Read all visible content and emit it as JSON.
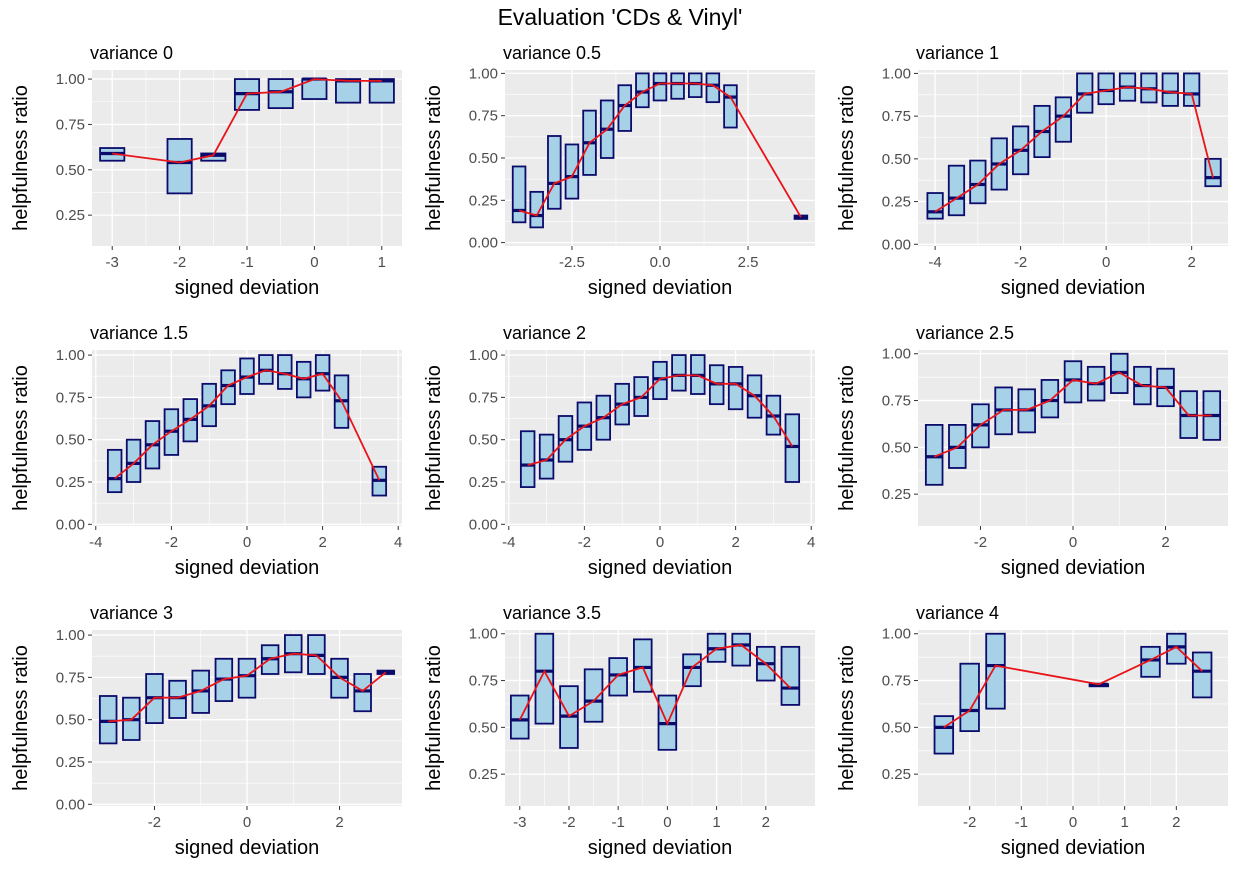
{
  "title": "Evaluation 'CDs & Vinyl'",
  "colors": {
    "panel_bg": "#ebebeb",
    "grid": "#ffffff",
    "box_fill": "#a6d1e6",
    "box_stroke": "#0b0b6b",
    "line": "#e8141a",
    "tick_text": "#4d4d4d"
  },
  "chart_data": [
    {
      "type": "box",
      "title": "variance 0",
      "xlabel": "signed deviation",
      "ylabel": "helpfulness ratio",
      "xlim": [
        -3.3,
        1.3
      ],
      "ylim": [
        0.08,
        1.05
      ],
      "xticks": [
        -3,
        -2,
        -1,
        0,
        1
      ],
      "xtick_labels": [
        "-3",
        "-2",
        "-1",
        "0",
        "1"
      ],
      "yticks": [
        0.25,
        0.5,
        0.75,
        1.0
      ],
      "ytick_labels": [
        "0.25",
        "0.50",
        "0.75",
        "1.00"
      ],
      "points": [
        {
          "x": -3,
          "lo": 0.55,
          "hi": 0.62,
          "med": 0.59
        },
        {
          "x": -2,
          "lo": 0.37,
          "hi": 0.67,
          "med": 0.54
        },
        {
          "x": -1.5,
          "lo": 0.55,
          "hi": 0.59,
          "med": 0.58
        },
        {
          "x": -1,
          "lo": 0.83,
          "hi": 1.0,
          "med": 0.92
        },
        {
          "x": -0.5,
          "lo": 0.84,
          "hi": 1.0,
          "med": 0.93
        },
        {
          "x": 0,
          "lo": 0.89,
          "hi": 1.0,
          "med": 1.0
        },
        {
          "x": 0.5,
          "lo": 0.87,
          "hi": 1.0,
          "med": 0.99
        },
        {
          "x": 1,
          "lo": 0.87,
          "hi": 1.0,
          "med": 0.99
        }
      ]
    },
    {
      "type": "box",
      "title": "variance 0.5",
      "xlabel": "signed deviation",
      "ylabel": "helpfulness ratio",
      "xlim": [
        -4.4,
        4.4
      ],
      "ylim": [
        -0.02,
        1.02
      ],
      "xticks": [
        -2.5,
        0,
        2.5
      ],
      "xtick_labels": [
        "-2.5",
        "0.0",
        "2.5"
      ],
      "yticks": [
        0,
        0.25,
        0.5,
        0.75,
        1.0
      ],
      "ytick_labels": [
        "0.00",
        "0.25",
        "0.50",
        "0.75",
        "1.00"
      ],
      "points": [
        {
          "x": -4,
          "lo": 0.12,
          "hi": 0.45,
          "med": 0.19
        },
        {
          "x": -3.5,
          "lo": 0.09,
          "hi": 0.3,
          "med": 0.16
        },
        {
          "x": -3,
          "lo": 0.2,
          "hi": 0.63,
          "med": 0.35
        },
        {
          "x": -2.5,
          "lo": 0.26,
          "hi": 0.58,
          "med": 0.39
        },
        {
          "x": -2,
          "lo": 0.4,
          "hi": 0.78,
          "med": 0.59
        },
        {
          "x": -1.5,
          "lo": 0.5,
          "hi": 0.84,
          "med": 0.67
        },
        {
          "x": -1,
          "lo": 0.66,
          "hi": 0.93,
          "med": 0.81
        },
        {
          "x": -0.5,
          "lo": 0.8,
          "hi": 1.0,
          "med": 0.89
        },
        {
          "x": 0,
          "lo": 0.84,
          "hi": 1.0,
          "med": 0.94
        },
        {
          "x": 0.5,
          "lo": 0.85,
          "hi": 1.0,
          "med": 0.94
        },
        {
          "x": 1,
          "lo": 0.86,
          "hi": 1.0,
          "med": 0.94
        },
        {
          "x": 1.5,
          "lo": 0.83,
          "hi": 1.0,
          "med": 0.93
        },
        {
          "x": 2,
          "lo": 0.68,
          "hi": 0.93,
          "med": 0.86
        },
        {
          "x": 4,
          "lo": 0.14,
          "hi": 0.16,
          "med": 0.15
        }
      ]
    },
    {
      "type": "box",
      "title": "variance 1",
      "xlabel": "signed deviation",
      "ylabel": "helpfulness ratio",
      "xlim": [
        -4.4,
        2.85
      ],
      "ylim": [
        -0.01,
        1.02
      ],
      "xticks": [
        -4,
        -2,
        0,
        2
      ],
      "xtick_labels": [
        "-4",
        "-2",
        "0",
        "2"
      ],
      "yticks": [
        0,
        0.25,
        0.5,
        0.75,
        1.0
      ],
      "ytick_labels": [
        "0.00",
        "0.25",
        "0.50",
        "0.75",
        "1.00"
      ],
      "points": [
        {
          "x": -4,
          "lo": 0.15,
          "hi": 0.3,
          "med": 0.19
        },
        {
          "x": -3.5,
          "lo": 0.17,
          "hi": 0.46,
          "med": 0.27
        },
        {
          "x": -3,
          "lo": 0.24,
          "hi": 0.49,
          "med": 0.35
        },
        {
          "x": -2.5,
          "lo": 0.32,
          "hi": 0.62,
          "med": 0.47
        },
        {
          "x": -2,
          "lo": 0.41,
          "hi": 0.69,
          "med": 0.55
        },
        {
          "x": -1.5,
          "lo": 0.51,
          "hi": 0.81,
          "med": 0.66
        },
        {
          "x": -1,
          "lo": 0.6,
          "hi": 0.86,
          "med": 0.75
        },
        {
          "x": -0.5,
          "lo": 0.77,
          "hi": 1.0,
          "med": 0.88
        },
        {
          "x": 0,
          "lo": 0.82,
          "hi": 1.0,
          "med": 0.9
        },
        {
          "x": 0.5,
          "lo": 0.84,
          "hi": 1.0,
          "med": 0.92
        },
        {
          "x": 1,
          "lo": 0.83,
          "hi": 1.0,
          "med": 0.91
        },
        {
          "x": 1.5,
          "lo": 0.81,
          "hi": 1.0,
          "med": 0.89
        },
        {
          "x": 2,
          "lo": 0.81,
          "hi": 1.0,
          "med": 0.88
        },
        {
          "x": 2.5,
          "lo": 0.34,
          "hi": 0.5,
          "med": 0.39
        }
      ]
    },
    {
      "type": "box",
      "title": "variance 1.5",
      "xlabel": "signed deviation",
      "ylabel": "helpfulness ratio",
      "xlim": [
        -4.1,
        4.1
      ],
      "ylim": [
        -0.01,
        1.03
      ],
      "xticks": [
        -4,
        -2,
        0,
        2,
        4
      ],
      "xtick_labels": [
        "-4",
        "-2",
        "0",
        "2",
        "4"
      ],
      "yticks": [
        0,
        0.25,
        0.5,
        0.75,
        1.0
      ],
      "ytick_labels": [
        "0.00",
        "0.25",
        "0.50",
        "0.75",
        "1.00"
      ],
      "points": [
        {
          "x": -3.5,
          "lo": 0.19,
          "hi": 0.44,
          "med": 0.27
        },
        {
          "x": -3,
          "lo": 0.25,
          "hi": 0.5,
          "med": 0.36
        },
        {
          "x": -2.5,
          "lo": 0.33,
          "hi": 0.61,
          "med": 0.47
        },
        {
          "x": -2,
          "lo": 0.41,
          "hi": 0.68,
          "med": 0.55
        },
        {
          "x": -1.5,
          "lo": 0.49,
          "hi": 0.74,
          "med": 0.62
        },
        {
          "x": -1,
          "lo": 0.58,
          "hi": 0.83,
          "med": 0.7
        },
        {
          "x": -0.5,
          "lo": 0.71,
          "hi": 0.91,
          "med": 0.82
        },
        {
          "x": 0,
          "lo": 0.77,
          "hi": 0.98,
          "med": 0.87
        },
        {
          "x": 0.5,
          "lo": 0.83,
          "hi": 1.0,
          "med": 0.91
        },
        {
          "x": 1,
          "lo": 0.8,
          "hi": 1.0,
          "med": 0.89
        },
        {
          "x": 1.5,
          "lo": 0.75,
          "hi": 0.96,
          "med": 0.86
        },
        {
          "x": 2,
          "lo": 0.79,
          "hi": 1.0,
          "med": 0.89
        },
        {
          "x": 2.5,
          "lo": 0.57,
          "hi": 0.88,
          "med": 0.73
        },
        {
          "x": 3.5,
          "lo": 0.17,
          "hi": 0.34,
          "med": 0.26
        }
      ]
    },
    {
      "type": "box",
      "title": "variance 2",
      "xlabel": "signed deviation",
      "ylabel": "helpfulness ratio",
      "xlim": [
        -4.1,
        4.1
      ],
      "ylim": [
        -0.01,
        1.03
      ],
      "xticks": [
        -4,
        -2,
        0,
        2,
        4
      ],
      "xtick_labels": [
        "-4",
        "-2",
        "0",
        "2",
        "4"
      ],
      "yticks": [
        0,
        0.25,
        0.5,
        0.75,
        1.0
      ],
      "ytick_labels": [
        "0.00",
        "0.25",
        "0.50",
        "0.75",
        "1.00"
      ],
      "points": [
        {
          "x": -3.5,
          "lo": 0.22,
          "hi": 0.55,
          "med": 0.35
        },
        {
          "x": -3,
          "lo": 0.27,
          "hi": 0.53,
          "med": 0.38
        },
        {
          "x": -2.5,
          "lo": 0.37,
          "hi": 0.64,
          "med": 0.5
        },
        {
          "x": -2,
          "lo": 0.44,
          "hi": 0.72,
          "med": 0.58
        },
        {
          "x": -1.5,
          "lo": 0.5,
          "hi": 0.76,
          "med": 0.63
        },
        {
          "x": -1,
          "lo": 0.59,
          "hi": 0.83,
          "med": 0.71
        },
        {
          "x": -0.5,
          "lo": 0.64,
          "hi": 0.87,
          "med": 0.75
        },
        {
          "x": 0,
          "lo": 0.74,
          "hi": 0.96,
          "med": 0.86
        },
        {
          "x": 0.5,
          "lo": 0.79,
          "hi": 1.0,
          "med": 0.88
        },
        {
          "x": 1,
          "lo": 0.77,
          "hi": 1.0,
          "med": 0.88
        },
        {
          "x": 1.5,
          "lo": 0.71,
          "hi": 0.94,
          "med": 0.83
        },
        {
          "x": 2,
          "lo": 0.68,
          "hi": 0.93,
          "med": 0.83
        },
        {
          "x": 2.5,
          "lo": 0.63,
          "hi": 0.88,
          "med": 0.76
        },
        {
          "x": 3,
          "lo": 0.53,
          "hi": 0.76,
          "med": 0.64
        },
        {
          "x": 3.5,
          "lo": 0.25,
          "hi": 0.65,
          "med": 0.46
        }
      ]
    },
    {
      "type": "box",
      "title": "variance 2.5",
      "xlabel": "signed deviation",
      "ylabel": "helpfulness ratio",
      "xlim": [
        -3.35,
        3.35
      ],
      "ylim": [
        0.08,
        1.02
      ],
      "xticks": [
        -2,
        0,
        2
      ],
      "xtick_labels": [
        "-2",
        "0",
        "2"
      ],
      "yticks": [
        0.25,
        0.5,
        0.75,
        1.0
      ],
      "ytick_labels": [
        "0.25",
        "0.50",
        "0.75",
        "1.00"
      ],
      "points": [
        {
          "x": -3,
          "lo": 0.3,
          "hi": 0.62,
          "med": 0.45
        },
        {
          "x": -2.5,
          "lo": 0.39,
          "hi": 0.62,
          "med": 0.5
        },
        {
          "x": -2,
          "lo": 0.5,
          "hi": 0.73,
          "med": 0.62
        },
        {
          "x": -1.5,
          "lo": 0.57,
          "hi": 0.82,
          "med": 0.7
        },
        {
          "x": -1,
          "lo": 0.58,
          "hi": 0.81,
          "med": 0.7
        },
        {
          "x": -0.5,
          "lo": 0.66,
          "hi": 0.86,
          "med": 0.75
        },
        {
          "x": 0,
          "lo": 0.74,
          "hi": 0.96,
          "med": 0.86
        },
        {
          "x": 0.5,
          "lo": 0.75,
          "hi": 0.93,
          "med": 0.84
        },
        {
          "x": 1,
          "lo": 0.79,
          "hi": 1.0,
          "med": 0.9
        },
        {
          "x": 1.5,
          "lo": 0.73,
          "hi": 0.93,
          "med": 0.83
        },
        {
          "x": 2,
          "lo": 0.72,
          "hi": 0.92,
          "med": 0.82
        },
        {
          "x": 2.5,
          "lo": 0.55,
          "hi": 0.8,
          "med": 0.67
        },
        {
          "x": 3,
          "lo": 0.54,
          "hi": 0.8,
          "med": 0.67
        }
      ]
    },
    {
      "type": "box",
      "title": "variance 3",
      "xlabel": "signed deviation",
      "ylabel": "helpfulness ratio",
      "xlim": [
        -3.35,
        3.35
      ],
      "ylim": [
        -0.01,
        1.03
      ],
      "xticks": [
        -2,
        0,
        2
      ],
      "xtick_labels": [
        "-2",
        "0",
        "2"
      ],
      "yticks": [
        0,
        0.25,
        0.5,
        0.75,
        1.0
      ],
      "ytick_labels": [
        "0.00",
        "0.25",
        "0.50",
        "0.75",
        "1.00"
      ],
      "points": [
        {
          "x": -3,
          "lo": 0.36,
          "hi": 0.64,
          "med": 0.49
        },
        {
          "x": -2.5,
          "lo": 0.38,
          "hi": 0.63,
          "med": 0.5
        },
        {
          "x": -2,
          "lo": 0.48,
          "hi": 0.77,
          "med": 0.63
        },
        {
          "x": -1.5,
          "lo": 0.51,
          "hi": 0.73,
          "med": 0.63
        },
        {
          "x": -1,
          "lo": 0.54,
          "hi": 0.79,
          "med": 0.67
        },
        {
          "x": -0.5,
          "lo": 0.61,
          "hi": 0.86,
          "med": 0.74
        },
        {
          "x": 0,
          "lo": 0.63,
          "hi": 0.86,
          "med": 0.76
        },
        {
          "x": 0.5,
          "lo": 0.77,
          "hi": 0.94,
          "med": 0.86
        },
        {
          "x": 1,
          "lo": 0.78,
          "hi": 1.0,
          "med": 0.89
        },
        {
          "x": 1.5,
          "lo": 0.77,
          "hi": 1.0,
          "med": 0.88
        },
        {
          "x": 2,
          "lo": 0.63,
          "hi": 0.86,
          "med": 0.75
        },
        {
          "x": 2.5,
          "lo": 0.55,
          "hi": 0.77,
          "med": 0.67
        },
        {
          "x": 3,
          "lo": 0.77,
          "hi": 0.79,
          "med": 0.78
        }
      ]
    },
    {
      "type": "box",
      "title": "variance 3.5",
      "xlabel": "signed deviation",
      "ylabel": "helpfulness ratio",
      "xlim": [
        -3.3,
        3.0
      ],
      "ylim": [
        0.08,
        1.02
      ],
      "xticks": [
        -3,
        -2,
        -1,
        0,
        1,
        2
      ],
      "xtick_labels": [
        "-3",
        "-2",
        "-1",
        "0",
        "1",
        "2"
      ],
      "yticks": [
        0.25,
        0.5,
        0.75,
        1.0
      ],
      "ytick_labels": [
        "0.25",
        "0.50",
        "0.75",
        "1.00"
      ],
      "points": [
        {
          "x": -3,
          "lo": 0.44,
          "hi": 0.67,
          "med": 0.54
        },
        {
          "x": -2.5,
          "lo": 0.52,
          "hi": 1.0,
          "med": 0.8
        },
        {
          "x": -2,
          "lo": 0.39,
          "hi": 0.72,
          "med": 0.56
        },
        {
          "x": -1.5,
          "lo": 0.53,
          "hi": 0.81,
          "med": 0.64
        },
        {
          "x": -1,
          "lo": 0.67,
          "hi": 0.87,
          "med": 0.78
        },
        {
          "x": -0.5,
          "lo": 0.69,
          "hi": 0.97,
          "med": 0.82
        },
        {
          "x": 0,
          "lo": 0.38,
          "hi": 0.67,
          "med": 0.52
        },
        {
          "x": 0.5,
          "lo": 0.72,
          "hi": 0.89,
          "med": 0.82
        },
        {
          "x": 1,
          "lo": 0.85,
          "hi": 1.0,
          "med": 0.92
        },
        {
          "x": 1.5,
          "lo": 0.83,
          "hi": 1.0,
          "med": 0.94
        },
        {
          "x": 2,
          "lo": 0.75,
          "hi": 0.93,
          "med": 0.84
        },
        {
          "x": 2.5,
          "lo": 0.62,
          "hi": 0.93,
          "med": 0.71
        }
      ]
    },
    {
      "type": "box",
      "title": "variance 4",
      "xlabel": "signed deviation",
      "ylabel": "helpfulness ratio",
      "xlim": [
        -3.0,
        3.0
      ],
      "ylim": [
        0.08,
        1.02
      ],
      "xticks": [
        -2,
        -1,
        0,
        1,
        2
      ],
      "xtick_labels": [
        "-2",
        "-1",
        "0",
        "1",
        "2"
      ],
      "yticks": [
        0.25,
        0.5,
        0.75,
        1.0
      ],
      "ytick_labels": [
        "0.25",
        "0.50",
        "0.75",
        "1.00"
      ],
      "points": [
        {
          "x": -2.5,
          "lo": 0.36,
          "hi": 0.56,
          "med": 0.5
        },
        {
          "x": -2,
          "lo": 0.48,
          "hi": 0.84,
          "med": 0.59
        },
        {
          "x": -1.5,
          "lo": 0.6,
          "hi": 1.0,
          "med": 0.83
        },
        {
          "x": 0.5,
          "lo": 0.72,
          "hi": 0.73,
          "med": 0.73
        },
        {
          "x": 1.5,
          "lo": 0.77,
          "hi": 0.93,
          "med": 0.86
        },
        {
          "x": 2,
          "lo": 0.84,
          "hi": 1.0,
          "med": 0.93
        },
        {
          "x": 2.5,
          "lo": 0.66,
          "hi": 0.9,
          "med": 0.8
        }
      ]
    }
  ]
}
